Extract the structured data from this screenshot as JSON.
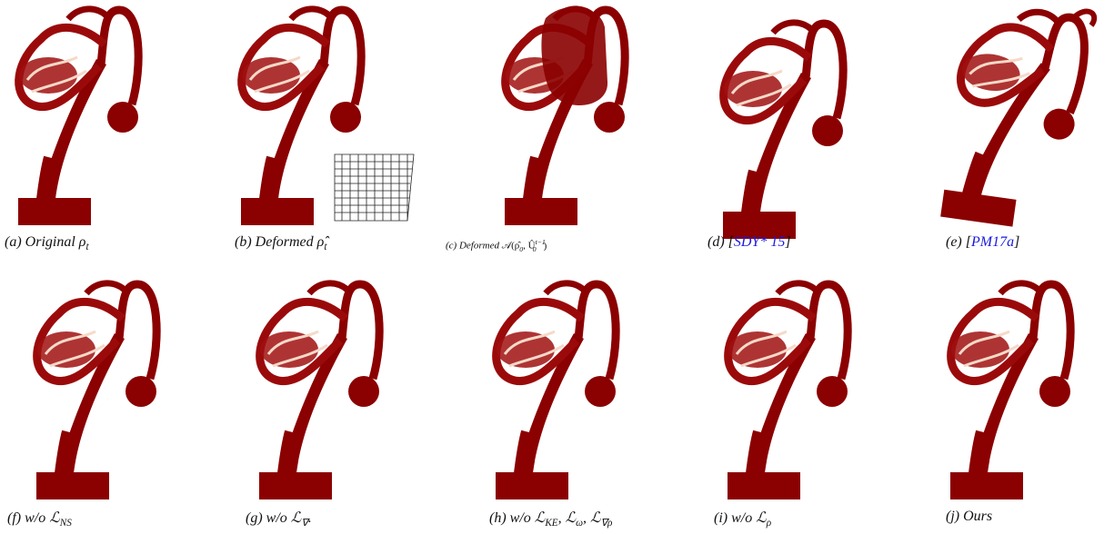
{
  "panels": [
    {
      "caption": [
        "(a) Original ",
        "ρ",
        "t"
      ]
    },
    {
      "caption": [
        "(b) Deformed ",
        "ρ̂",
        "t"
      ]
    },
    {
      "caption": [
        "(c) Deformed ",
        "𝒜(ρ̂",
        "0",
        ", Û",
        "t−1",
        "0",
        ")"
      ]
    },
    {
      "caption": [
        "(d) [",
        "SDY* 15",
        "]"
      ]
    },
    {
      "caption": [
        "(e) [",
        "PM17a",
        "]"
      ]
    },
    {
      "caption": [
        "(f) w/o ",
        "ℒ",
        "NS"
      ]
    },
    {
      "caption": [
        "(g) w/o ",
        "ℒ",
        "∇",
        "."
      ]
    },
    {
      "caption": [
        "(h) w/o ",
        "ℒ",
        "KE",
        ", ℒ",
        "ω",
        ", ℒ",
        "∇ρ"
      ]
    },
    {
      "caption": [
        "(i) w/o ",
        "ℒ",
        "ρ"
      ]
    },
    {
      "caption": [
        "(j) Ours"
      ]
    }
  ]
}
